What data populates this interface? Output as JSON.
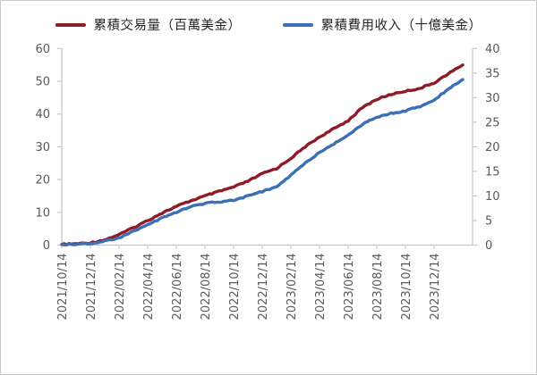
{
  "chart": {
    "legend": [
      {
        "label": "累積交易量（百萬美金）",
        "color": "#8d1b28"
      },
      {
        "label": "累積費用收入（十億美金）",
        "color": "#3b6fb6"
      }
    ],
    "left_axis_ticks": [
      "0",
      "10",
      "20",
      "30",
      "40",
      "50",
      "60"
    ],
    "right_axis_ticks": [
      "0",
      "5",
      "10",
      "15",
      "20",
      "25",
      "30",
      "35",
      "40"
    ],
    "x_axis_ticks": [
      "2021/10/14",
      "2021/12/14",
      "2022/02/14",
      "2022/04/14",
      "2022/06/14",
      "2022/08/14",
      "2022/10/14",
      "2022/12/14",
      "2023/02/14",
      "2023/04/14",
      "2023/06/14",
      "2023/08/14",
      "2023/10/14",
      "2023/12/14"
    ],
    "axis_text_color": "#595959",
    "axis_line_color": "#c6c6c6"
  },
  "chart_data": {
    "type": "line",
    "title": "",
    "xlabel": "",
    "ylabel_left": "累積交易量（百萬美金）",
    "ylabel_right": "累積費用收入（十億美金）",
    "left_ylim": [
      0,
      60
    ],
    "right_ylim": [
      0,
      40
    ],
    "grid": false,
    "legend_position": "top",
    "x": [
      "2021/10/14",
      "2021/11/14",
      "2021/12/14",
      "2022/01/14",
      "2022/02/14",
      "2022/03/14",
      "2022/04/14",
      "2022/05/14",
      "2022/06/14",
      "2022/07/14",
      "2022/08/14",
      "2022/09/14",
      "2022/10/14",
      "2022/11/14",
      "2022/12/14",
      "2023/01/14",
      "2023/02/14",
      "2023/03/14",
      "2023/04/14",
      "2023/05/14",
      "2023/06/14",
      "2023/07/14",
      "2023/08/14",
      "2023/09/14",
      "2023/10/14",
      "2023/11/14",
      "2023/12/14",
      "2024/01/14",
      "2024/02/14"
    ],
    "x_tick_labels": [
      "2021/10/14",
      "2021/12/14",
      "2022/02/14",
      "2022/04/14",
      "2022/06/14",
      "2022/08/14",
      "2022/10/14",
      "2022/12/14",
      "2023/02/14",
      "2023/04/14",
      "2023/06/14",
      "2023/08/14",
      "2023/10/14",
      "2023/12/14"
    ],
    "series": [
      {
        "name": "累積交易量（百萬美金）",
        "axis": "left",
        "color": "#8d1b28",
        "values": [
          0.2,
          0.4,
          0.7,
          1.6,
          3.2,
          5.3,
          7.5,
          9.8,
          11.8,
          13.5,
          15.0,
          16.4,
          17.7,
          19.5,
          21.8,
          23.4,
          26.5,
          30.0,
          33.0,
          35.5,
          38.0,
          42.0,
          44.5,
          46.0,
          47.0,
          47.8,
          49.5,
          52.3,
          55.0
        ]
      },
      {
        "name": "累積費用收入（十億美金）",
        "axis": "right",
        "color": "#3b6fb6",
        "values": [
          0.1,
          0.2,
          0.3,
          0.8,
          1.5,
          2.8,
          4.2,
          5.5,
          6.7,
          7.8,
          8.5,
          8.8,
          9.1,
          10.0,
          10.9,
          11.8,
          14.2,
          16.7,
          18.8,
          20.6,
          22.4,
          24.6,
          26.0,
          26.8,
          27.3,
          28.2,
          29.5,
          31.8,
          33.7
        ]
      }
    ]
  }
}
